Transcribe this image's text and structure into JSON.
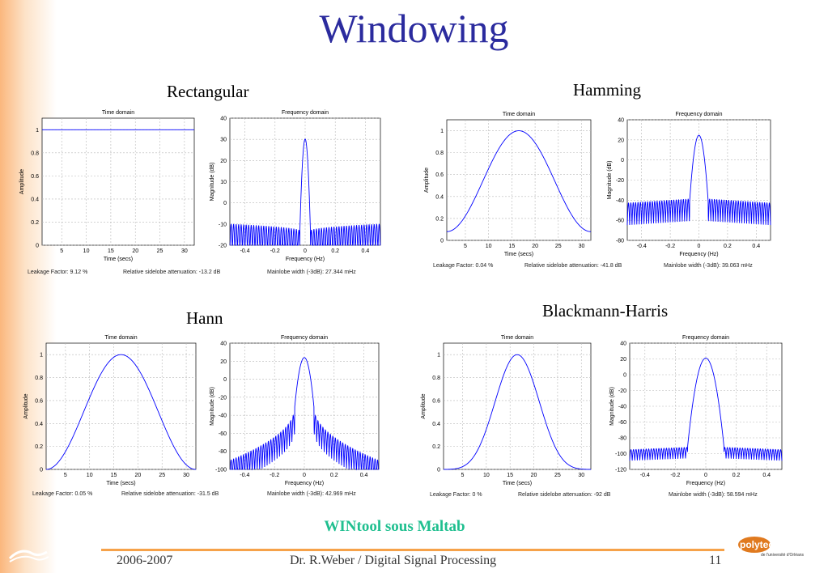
{
  "slide": {
    "title": "Windowing",
    "subtitle_bottom": "WINtool sous Maltab",
    "footer": {
      "left": "2006-2007",
      "center": "Dr. R.Weber / Digital Signal Processing",
      "page": "11"
    },
    "logo_right_text": "polytechnique",
    "logo_right_sub": "de l'université d'Orléans"
  },
  "windows": [
    {
      "name": "Rectangular",
      "time_title": "Time domain",
      "time_xlabel": "Time (secs)",
      "time_ylabel": "Amplitude",
      "freq_title": "Frequency domain",
      "freq_xlabel": "Frequency (Hz)",
      "freq_ylabel": "Magnitude (dB)",
      "leakage": "Leakage Factor: 9.12 %",
      "sidelobe": "Relative sidelobe attenuation: -13.2 dB",
      "mainlobe": "Mainlobe width (-3dB): 27.344 mHz"
    },
    {
      "name": "Hamming",
      "time_title": "Time domain",
      "time_xlabel": "Time (secs)",
      "time_ylabel": "Amplitude",
      "freq_title": "Frequency domain",
      "freq_xlabel": "Frequency (Hz)",
      "freq_ylabel": "Magnitude (dB)",
      "leakage": "Leakage Factor: 0.04 %",
      "sidelobe": "Relative sidelobe attenuation: -41.8 dB",
      "mainlobe": "Mainlobe width (-3dB): 39.063 mHz"
    },
    {
      "name": "Hann",
      "time_title": "Time domain",
      "time_xlabel": "Time (secs)",
      "time_ylabel": "Amplitude",
      "freq_title": "Frequency domain",
      "freq_xlabel": "Frequency (Hz)",
      "freq_ylabel": "Magnitude (dB)",
      "leakage": "Leakage Factor: 0.05 %",
      "sidelobe": "Relative sidelobe attenuation: -31.5 dB",
      "mainlobe": "Mainlobe width (-3dB): 42.969 mHz"
    },
    {
      "name": "Blackmann-Harris",
      "time_title": "Time domain",
      "time_xlabel": "Time (secs)",
      "time_ylabel": "Amplitude",
      "freq_title": "Frequency domain",
      "freq_xlabel": "Frequency (Hz)",
      "freq_ylabel": "Magnitude (dB)",
      "leakage": "Leakage Factor: 0 %",
      "sidelobe": "Relative sidelobe attenuation: -92 dB",
      "mainlobe": "Mainlobe width (-3dB): 58.594 mHz"
    }
  ],
  "chart_data": [
    {
      "type": "line",
      "window": "Rectangular",
      "title": "Time domain",
      "xlabel": "Time (secs)",
      "ylabel": "Amplitude",
      "xlim": [
        1,
        32
      ],
      "ylim": [
        0,
        1.1
      ],
      "xticks": [
        5,
        10,
        15,
        20,
        25,
        30
      ],
      "yticks": [
        0,
        0.2,
        0.4,
        0.6,
        0.8,
        1
      ],
      "shape": "rectangular",
      "grid": true
    },
    {
      "type": "line",
      "window": "Rectangular",
      "title": "Frequency domain",
      "xlabel": "Frequency (Hz)",
      "ylabel": "Magnitude (dB)",
      "xlim": [
        -0.5,
        0.5
      ],
      "ylim": [
        -20,
        40
      ],
      "xticks": [
        -0.4,
        -0.2,
        0,
        0.2,
        0.4
      ],
      "yticks": [
        -20,
        -10,
        0,
        10,
        20,
        30,
        40
      ],
      "peak_db": 30.1,
      "sidelobe_db": -13.2,
      "floor_db": -10,
      "grid": true
    },
    {
      "type": "line",
      "window": "Hamming",
      "title": "Time domain",
      "xlabel": "Time (secs)",
      "ylabel": "Amplitude",
      "xlim": [
        1,
        32
      ],
      "ylim": [
        0,
        1.1
      ],
      "xticks": [
        5,
        10,
        15,
        20,
        25,
        30
      ],
      "yticks": [
        0,
        0.2,
        0.4,
        0.6,
        0.8,
        1
      ],
      "shape": "hamming",
      "grid": true
    },
    {
      "type": "line",
      "window": "Hamming",
      "title": "Frequency domain",
      "xlabel": "Frequency (Hz)",
      "ylabel": "Magnitude (dB)",
      "xlim": [
        -0.5,
        0.5
      ],
      "ylim": [
        -80,
        40
      ],
      "xticks": [
        -0.4,
        -0.2,
        0,
        0.2,
        0.4
      ],
      "yticks": [
        -80,
        -60,
        -40,
        -20,
        0,
        20,
        40
      ],
      "peak_db": 24.6,
      "sidelobe_db": -41.8,
      "floor_db": -40,
      "grid": true
    },
    {
      "type": "line",
      "window": "Hann",
      "title": "Time domain",
      "xlabel": "Time (secs)",
      "ylabel": "Amplitude",
      "xlim": [
        1,
        32
      ],
      "ylim": [
        0,
        1.1
      ],
      "xticks": [
        5,
        10,
        15,
        20,
        25,
        30
      ],
      "yticks": [
        0,
        0.2,
        0.4,
        0.6,
        0.8,
        1
      ],
      "shape": "hann",
      "grid": true
    },
    {
      "type": "line",
      "window": "Hann",
      "title": "Frequency domain",
      "xlabel": "Frequency (Hz)",
      "ylabel": "Magnitude (dB)",
      "xlim": [
        -0.5,
        0.5
      ],
      "ylim": [
        -100,
        40
      ],
      "xticks": [
        -0.4,
        -0.2,
        0,
        0.2,
        0.4
      ],
      "yticks": [
        -100,
        -80,
        -60,
        -40,
        -20,
        0,
        20,
        40
      ],
      "peak_db": 24,
      "sidelobe_db": -31.5,
      "floor_db": -90,
      "grid": true
    },
    {
      "type": "line",
      "window": "Blackmann-Harris",
      "title": "Time domain",
      "xlabel": "Time (secs)",
      "ylabel": "Amplitude",
      "xlim": [
        1,
        32
      ],
      "ylim": [
        0,
        1.1
      ],
      "xticks": [
        5,
        10,
        15,
        20,
        25,
        30
      ],
      "yticks": [
        0,
        0.2,
        0.4,
        0.6,
        0.8,
        1
      ],
      "shape": "blackman-harris",
      "grid": true
    },
    {
      "type": "line",
      "window": "Blackmann-Harris",
      "title": "Frequency domain",
      "xlabel": "Frequency (Hz)",
      "ylabel": "Magnitude (dB)",
      "xlim": [
        -0.5,
        0.5
      ],
      "ylim": [
        -120,
        40
      ],
      "xticks": [
        -0.4,
        -0.2,
        0,
        0.2,
        0.4
      ],
      "yticks": [
        -120,
        -100,
        -80,
        -60,
        -40,
        -20,
        0,
        20,
        40
      ],
      "peak_db": 21,
      "sidelobe_db": -92,
      "floor_db": -110,
      "grid": true
    }
  ],
  "colors": {
    "title": "#2b2b9e",
    "trace": "#0000ff",
    "grid": "#b8b8b8",
    "wintool": "#1fbf8f",
    "footer_line": "#f6a24a"
  }
}
